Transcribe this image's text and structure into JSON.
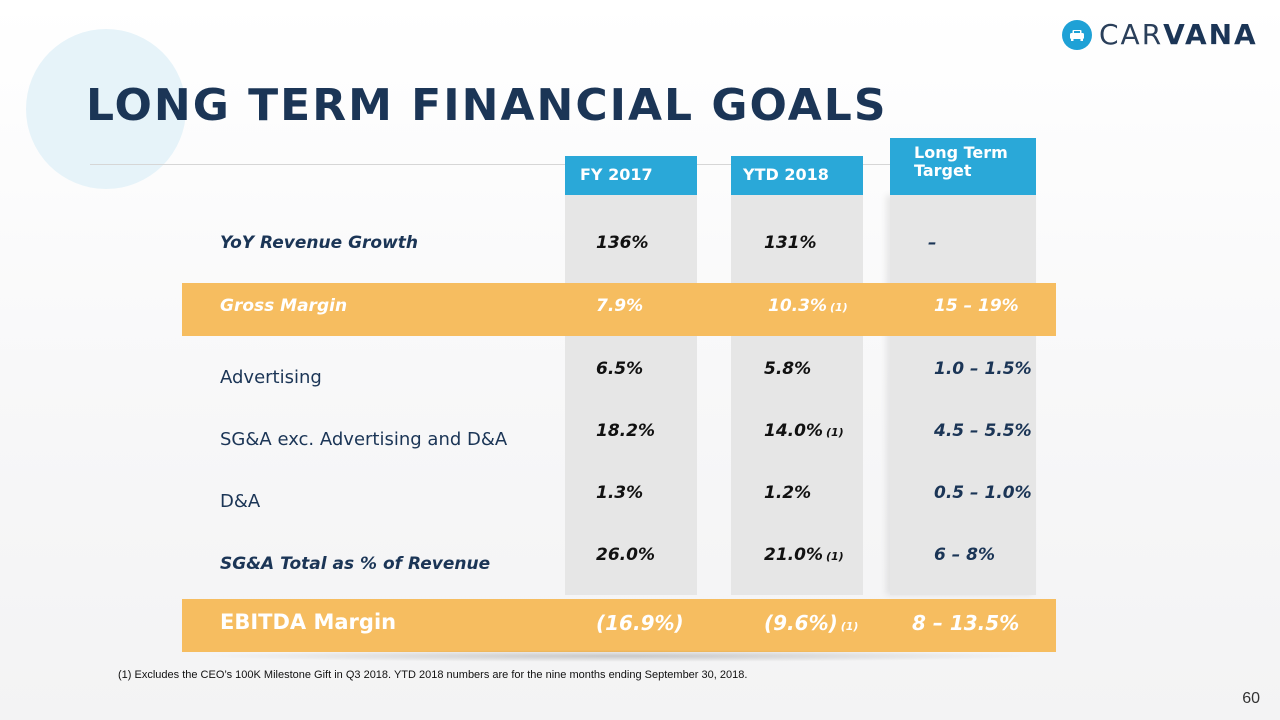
{
  "header": {
    "title": "LONG TERM FINANCIAL GOALS",
    "logo_text_thin": "CAR",
    "logo_text_bold": "VANA",
    "logo_icon": "car-icon"
  },
  "columns": {
    "fy2017": "FY 2017",
    "ytd2018": "YTD 2018",
    "target_line1": "Long Term",
    "target_line2": "Target"
  },
  "rows": {
    "revenue_growth": {
      "label": "YoY Revenue Growth",
      "fy2017": "136%",
      "ytd2018": "131%",
      "target": "–"
    },
    "gross_margin": {
      "label": "Gross Margin",
      "fy2017": "7.9%",
      "ytd2018": "10.3%",
      "ytd2018_note": "(1)",
      "target": "15 – 19%"
    },
    "advertising": {
      "label": "Advertising",
      "fy2017": "6.5%",
      "ytd2018": "5.8%",
      "target": "1.0 – 1.5%"
    },
    "sga_exc": {
      "label": "SG&A exc. Advertising and D&A",
      "fy2017": "18.2%",
      "ytd2018": "14.0%",
      "ytd2018_note": "(1)",
      "target": "4.5 – 5.5%"
    },
    "da": {
      "label": "D&A",
      "fy2017": "1.3%",
      "ytd2018": "1.2%",
      "target": "0.5 – 1.0%"
    },
    "sga_total": {
      "label": "SG&A Total as % of Revenue",
      "fy2017": "26.0%",
      "ytd2018": "21.0%",
      "ytd2018_note": "(1)",
      "target": "6 – 8%"
    },
    "ebitda": {
      "label": "EBITDA Margin",
      "fy2017": "(16.9%)",
      "ytd2018": "(9.6%)",
      "ytd2018_note": "(1)",
      "target": "8 – 13.5%"
    }
  },
  "footnote": "(1) Excludes the CEO’s 100K Milestone Gift in Q3 2018. YTD 2018 numbers are for the nine months ending September 30, 2018.",
  "page_number": "60",
  "colors": {
    "navy": "#1b3556",
    "header_blue": "#2aa8d8",
    "highlight_orange": "#f6bd60",
    "column_gray": "#e6e6e6",
    "circle_tint": "#e6f3f9"
  }
}
